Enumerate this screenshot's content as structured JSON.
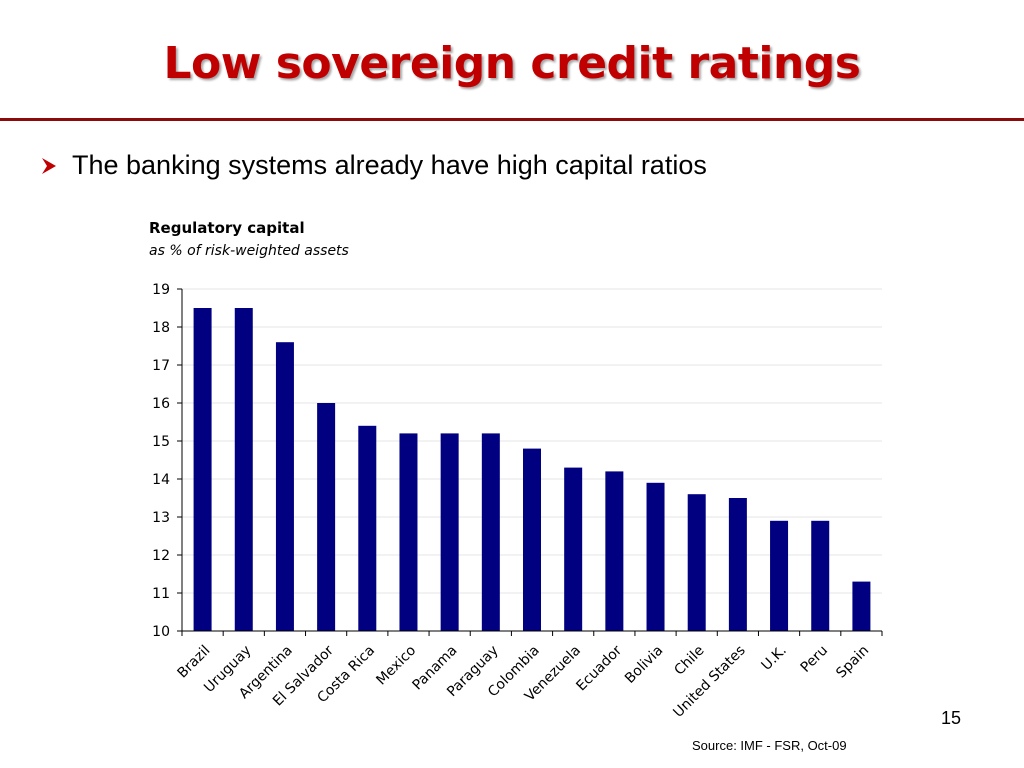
{
  "slide": {
    "title": "Low sovereign credit ratings",
    "bullet": "The banking systems already have high capital ratios",
    "source": "Source: IMF - FSR, Oct-09",
    "page_number": "15"
  },
  "colors": {
    "title": "#c00000",
    "rule": "#8b0a0a",
    "bar": "#000080",
    "bullet_arrow": "#c00000"
  },
  "icons": {
    "bullet": "arrowhead-bullet-icon"
  },
  "chart_data": {
    "type": "bar",
    "title": "Regulatory capital",
    "subtitle": "as % of risk-weighted assets",
    "categories": [
      "Brazil",
      "Uruguay",
      "Argentina",
      "El Salvador",
      "Costa Rica",
      "Mexico",
      "Panama",
      "Paraguay",
      "Colombia",
      "Venezuela",
      "Ecuador",
      "Bolivia",
      "Chile",
      "United States",
      "U.K.",
      "Peru",
      "Spain"
    ],
    "values": [
      18.5,
      18.5,
      17.6,
      16.0,
      15.4,
      15.2,
      15.2,
      15.2,
      14.8,
      14.3,
      14.2,
      13.9,
      13.6,
      13.5,
      12.9,
      12.9,
      11.3
    ],
    "ylim": [
      10,
      19
    ],
    "yticks": [
      "10",
      "11",
      "12",
      "13",
      "14",
      "15",
      "16",
      "17",
      "18",
      "19"
    ],
    "grid": true
  }
}
